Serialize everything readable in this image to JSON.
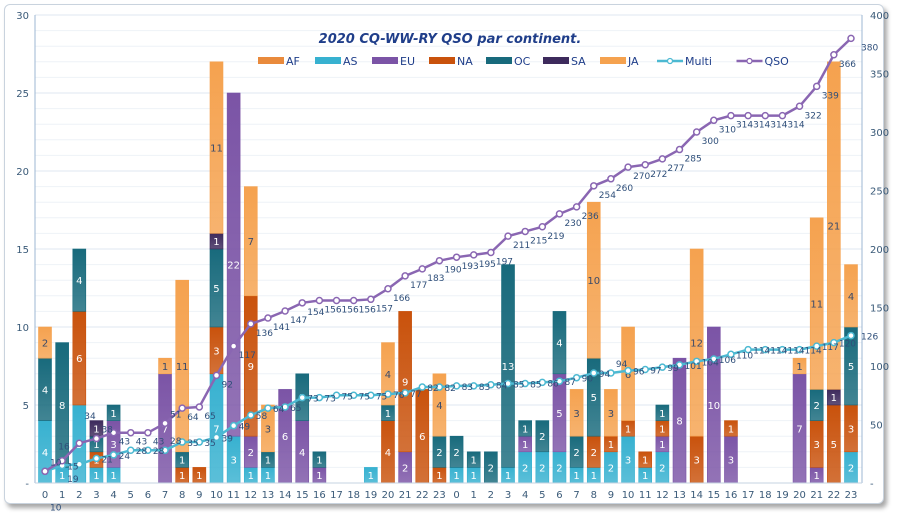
{
  "chart_data": {
    "type": "bar",
    "title": "2020 CQ-WW-RY  QSO par continent.",
    "xlabel": "",
    "ylabel": "",
    "ylim": [
      0,
      30
    ],
    "y2lim": [
      0,
      400
    ],
    "grid": true,
    "legend_position": "top",
    "left_ticks": [
      "30",
      "25",
      "20",
      "15",
      "10",
      "5",
      "-"
    ],
    "right_ticks": [
      "400",
      "350",
      "300",
      "250",
      "200",
      "150",
      "100",
      "50",
      "-"
    ],
    "categories": [
      "0",
      "1",
      "2",
      "3",
      "4",
      "5",
      "6",
      "7",
      "8",
      "9",
      "10",
      "11",
      "12",
      "13",
      "14",
      "15",
      "16",
      "17",
      "18",
      "19",
      "20",
      "21",
      "22",
      "23",
      "0",
      "1",
      "2",
      "3",
      "4",
      "5",
      "6",
      "7",
      "8",
      "9",
      "10",
      "11",
      "12",
      "13",
      "14",
      "15",
      "16",
      "17",
      "18",
      "19",
      "20",
      "21",
      "22",
      "23"
    ],
    "series": [
      {
        "name": "AF",
        "color": "#e98a3c",
        "values": [
          0,
          0,
          0,
          0,
          0,
          0,
          0,
          0,
          0,
          0,
          0,
          0,
          0,
          0,
          0,
          0,
          0,
          0,
          0,
          0,
          0,
          0,
          0,
          0,
          0,
          0,
          0,
          0,
          0,
          0,
          0,
          0,
          0,
          0,
          0,
          0,
          0,
          0,
          0,
          0,
          0,
          0,
          0,
          0,
          0,
          0,
          0,
          0
        ]
      },
      {
        "name": "AS",
        "color": "#37b1d0",
        "values": [
          4,
          1,
          5,
          1,
          1,
          0,
          0,
          0,
          0,
          0,
          7,
          3,
          1,
          1,
          0,
          0,
          0,
          0,
          0,
          1,
          0,
          0,
          0,
          0,
          1,
          1,
          0,
          1,
          2,
          2,
          2,
          1,
          1,
          2,
          3,
          1,
          2,
          0,
          0,
          0,
          0,
          0,
          0,
          0,
          0,
          0,
          0,
          2
        ]
      },
      {
        "name": "EU",
        "color": "#7b54a6",
        "values": [
          0,
          0,
          0,
          0,
          3,
          0,
          0,
          7,
          0,
          0,
          0,
          22,
          2,
          0,
          6,
          4,
          1,
          0,
          0,
          0,
          0,
          2,
          0,
          0,
          0,
          0,
          0,
          0,
          1,
          0,
          5,
          0,
          0,
          0,
          0,
          0,
          1,
          8,
          0,
          10,
          3,
          0,
          0,
          0,
          7,
          1,
          0,
          0
        ]
      },
      {
        "name": "NA",
        "color": "#c9520c",
        "values": [
          0,
          0,
          6,
          1,
          0,
          0,
          0,
          0,
          1,
          1,
          3,
          0,
          9,
          0,
          0,
          0,
          0,
          0,
          0,
          0,
          4,
          9,
          6,
          1,
          0,
          0,
          0,
          0,
          0,
          0,
          0,
          0,
          2,
          1,
          1,
          1,
          1,
          0,
          3,
          0,
          1,
          0,
          0,
          0,
          0,
          3,
          5,
          3
        ]
      },
      {
        "name": "OC",
        "color": "#186a7c",
        "values": [
          4,
          8,
          4,
          1,
          1,
          0,
          0,
          0,
          1,
          0,
          5,
          0,
          0,
          1,
          0,
          3,
          1,
          0,
          0,
          0,
          1,
          0,
          0,
          2,
          2,
          1,
          2,
          13,
          1,
          2,
          4,
          2,
          5,
          0,
          0,
          0,
          1,
          0,
          0,
          0,
          0,
          0,
          0,
          0,
          0,
          2,
          0,
          5
        ]
      },
      {
        "name": "SA",
        "color": "#3d2a5c",
        "values": [
          0,
          0,
          0,
          1,
          0,
          0,
          0,
          0,
          0,
          0,
          1,
          0,
          0,
          0,
          0,
          0,
          0,
          0,
          0,
          0,
          0,
          0,
          0,
          0,
          0,
          0,
          0,
          0,
          0,
          0,
          0,
          0,
          0,
          0,
          0,
          0,
          0,
          0,
          0,
          0,
          0,
          0,
          0,
          0,
          0,
          0,
          1,
          0
        ]
      },
      {
        "name": "JA",
        "color": "#f5a24f",
        "values": [
          2,
          0,
          0,
          0,
          0,
          0,
          0,
          1,
          11,
          0,
          11,
          0,
          7,
          3,
          0,
          0,
          0,
          0,
          0,
          0,
          4,
          0,
          0,
          4,
          0,
          0,
          0,
          0,
          0,
          0,
          0,
          3,
          10,
          3,
          6,
          0,
          0,
          0,
          12,
          0,
          0,
          0,
          0,
          0,
          1,
          11,
          21,
          4
        ]
      }
    ],
    "lines": [
      {
        "name": "Multi",
        "color": "#4cb9d2",
        "axis": "right",
        "values": [
          10,
          15,
          16,
          21,
          24,
          28,
          28,
          28,
          35,
          35,
          39,
          49,
          58,
          64,
          65,
          73,
          73,
          75,
          75,
          75,
          76,
          77,
          82,
          82,
          83,
          83,
          84,
          85,
          85,
          86,
          87,
          90,
          94,
          94,
          96,
          97,
          99,
          101,
          104,
          106,
          110,
          114,
          114,
          114,
          114,
          117,
          120,
          126
        ]
      },
      {
        "name": "QSO",
        "color": "#8a66b2",
        "axis": "right",
        "values": [
          10,
          19,
          34,
          38,
          43,
          43,
          43,
          51,
          64,
          65,
          92,
          117,
          136,
          141,
          147,
          154,
          156,
          156,
          156,
          157,
          166,
          177,
          183,
          190,
          193,
          195,
          197,
          211,
          215,
          219,
          230,
          236,
          254,
          260,
          270,
          272,
          277,
          285,
          300,
          310,
          314,
          314,
          314,
          314,
          322,
          339,
          366,
          380
        ]
      }
    ]
  }
}
